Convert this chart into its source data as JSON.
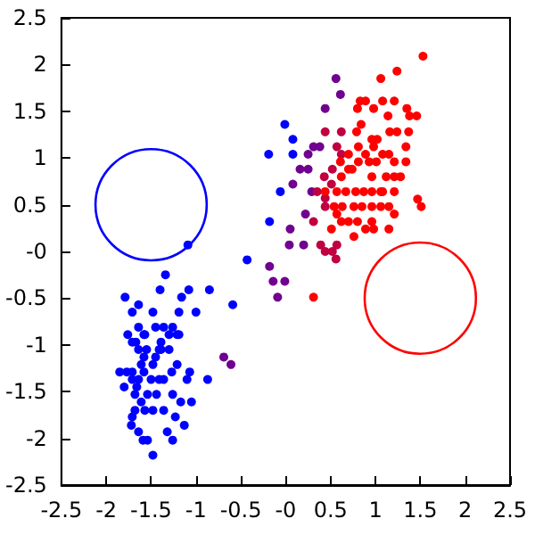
{
  "chart_data": {
    "type": "scatter",
    "xlim": [
      -2.5,
      2.5
    ],
    "ylim": [
      -2.5,
      2.5
    ],
    "xticks": [
      -2.5,
      -2,
      -1.5,
      -1,
      -0.5,
      {
        "value": 0,
        "label": "-0"
      },
      0.5,
      1,
      1.5,
      2,
      2.5
    ],
    "yticks": [
      -2.5,
      -2,
      -1.5,
      -1,
      -0.5,
      {
        "value": 0,
        "label": "-0"
      },
      0.5,
      1,
      1.5,
      2,
      2.5
    ],
    "grid": false,
    "marker": "circle",
    "series": [
      {
        "type": "scatter",
        "color": "#0000ff",
        "x": [
          -0.01,
          0.08,
          -0.19,
          0.08,
          -0.06,
          -0.18,
          -0.43,
          -1.09,
          -1.34,
          -1.4,
          -1.79,
          -1.48,
          -1.71,
          -1.64,
          -1.16,
          -1.08,
          -0.85,
          -1.19,
          -1.0,
          -0.59,
          -1.76,
          -1.71,
          -1.64,
          -1.58,
          -1.45,
          -1.36,
          -1.26,
          -1.21,
          -1.41,
          -1.55,
          -1.64,
          -1.61,
          -1.58,
          -1.48,
          -1.5,
          -1.58,
          -1.71,
          -1.8,
          -1.85,
          -1.71,
          -1.64,
          -1.68,
          -1.54,
          -1.41,
          -1.36,
          -1.44,
          -1.57,
          -1.48,
          -1.36,
          -1.26,
          -1.17,
          -1.05,
          -1.07,
          -1.21,
          -0.87,
          -1.23,
          -1.32,
          -1.26,
          -1.13,
          -1.71,
          -1.72,
          -1.64,
          -1.59,
          -1.54,
          -1.48,
          -1.68,
          -1.61,
          -1.77,
          -1.57,
          -1.3,
          -1.19,
          -1.3,
          -1.39,
          -1.39,
          -1.67,
          -1.45,
          -1.66,
          -1.27,
          -1.1
        ],
        "values": [
          1.36,
          1.2,
          1.04,
          1.04,
          0.64,
          0.32,
          -0.09,
          0.07,
          -0.25,
          -0.41,
          -0.49,
          -0.65,
          -0.65,
          -0.57,
          -0.49,
          -0.41,
          -0.41,
          -0.65,
          -0.65,
          -0.57,
          -0.89,
          -0.97,
          -0.81,
          -0.89,
          -0.81,
          -0.81,
          -0.81,
          -0.89,
          -1.05,
          -1.05,
          -1.05,
          -1.21,
          -1.13,
          -1.21,
          -1.37,
          -1.29,
          -1.29,
          -1.45,
          -1.29,
          -1.37,
          -1.37,
          -1.53,
          -1.53,
          -1.37,
          -1.37,
          -1.53,
          -1.7,
          -1.7,
          -1.7,
          -1.53,
          -1.61,
          -1.61,
          -1.29,
          -1.21,
          -1.37,
          -1.77,
          -1.93,
          -2.02,
          -1.86,
          -1.77,
          -1.86,
          -1.93,
          -2.02,
          -2.02,
          -2.18,
          -1.7,
          -1.61,
          -1.29,
          -0.89,
          -0.89,
          -0.89,
          -1.05,
          -1.05,
          -0.97,
          -0.97,
          -1.13,
          -1.45,
          -1.29,
          -1.37
        ]
      },
      {
        "type": "scatter",
        "color": "#700090",
        "x": [
          -0.18,
          -0.14,
          -0.09,
          -0.01,
          0.05,
          0.04,
          0.2,
          0.25,
          0.16,
          0.08,
          0.25,
          0.31,
          0.38,
          0.44,
          0.56,
          0.61,
          0.29,
          0.22,
          -0.69,
          -0.61
        ],
        "values": [
          -0.16,
          -0.32,
          -0.49,
          -0.32,
          0.24,
          0.07,
          0.07,
          1.04,
          0.88,
          0.72,
          0.88,
          1.12,
          1.12,
          1.53,
          1.85,
          1.68,
          0.64,
          0.4,
          -1.13,
          -1.21
        ]
      },
      {
        "type": "scatter",
        "color": "#c00040",
        "x": [
          0.44,
          0.62,
          0.57,
          0.31,
          0.44,
          0.39,
          0.44,
          0.52,
          0.56,
          0.57,
          0.35,
          0.43,
          0.51,
          0.44,
          0.52,
          0.62
        ],
        "values": [
          1.28,
          1.28,
          1.12,
          0.32,
          0.48,
          0.07,
          0.0,
          0.0,
          -0.08,
          0.07,
          0.64,
          0.8,
          0.72,
          0.57,
          0.88,
          1.04
        ]
      },
      {
        "type": "scatter",
        "color": "#ff0000",
        "x": [
          0.31,
          0.51,
          0.62,
          0.76,
          0.8,
          0.89,
          0.98,
          0.96,
          1.15,
          1.21,
          1.47,
          1.51,
          0.83,
          0.8,
          0.89,
          0.98,
          1.08,
          1.21,
          1.14,
          1.06,
          1.24,
          1.53,
          1.35,
          1.38,
          1.46,
          1.37,
          1.34,
          1.34,
          1.28,
          1.21,
          1.06,
          0.96,
          1.01,
          0.98,
          0.96,
          1.02,
          1.08,
          1.15,
          0.93,
          0.89,
          0.81,
          0.74,
          0.7,
          0.62,
          0.44,
          0.57,
          0.67,
          0.78,
          0.87,
          0.96,
          1.06,
          0.96,
          0.85,
          0.76,
          0.63,
          0.54,
          0.61,
          0.7,
          0.81,
          0.79,
          0.84,
          1.16,
          1.24,
          1.21,
          1.21,
          1.12,
          1.08,
          1.15,
          0.7,
          0.57
        ],
        "values": [
          -0.49,
          0.24,
          0.32,
          0.16,
          0.32,
          0.24,
          0.24,
          0.32,
          0.24,
          0.4,
          0.56,
          0.48,
          1.61,
          1.53,
          1.61,
          1.53,
          1.61,
          1.61,
          1.45,
          1.85,
          1.93,
          2.09,
          1.53,
          1.45,
          1.45,
          1.28,
          1.12,
          0.96,
          0.8,
          0.64,
          0.64,
          0.8,
          0.96,
          1.12,
          1.2,
          1.2,
          1.04,
          1.04,
          0.96,
          1.04,
          0.96,
          0.88,
          0.88,
          0.8,
          0.64,
          0.64,
          0.64,
          0.64,
          0.64,
          0.64,
          0.48,
          0.48,
          0.48,
          0.48,
          0.48,
          0.48,
          0.96,
          1.04,
          1.12,
          1.28,
          1.36,
          1.28,
          1.28,
          0.8,
          0.96,
          0.8,
          0.64,
          0.48,
          0.32,
          0.4
        ]
      }
    ]
  }
}
